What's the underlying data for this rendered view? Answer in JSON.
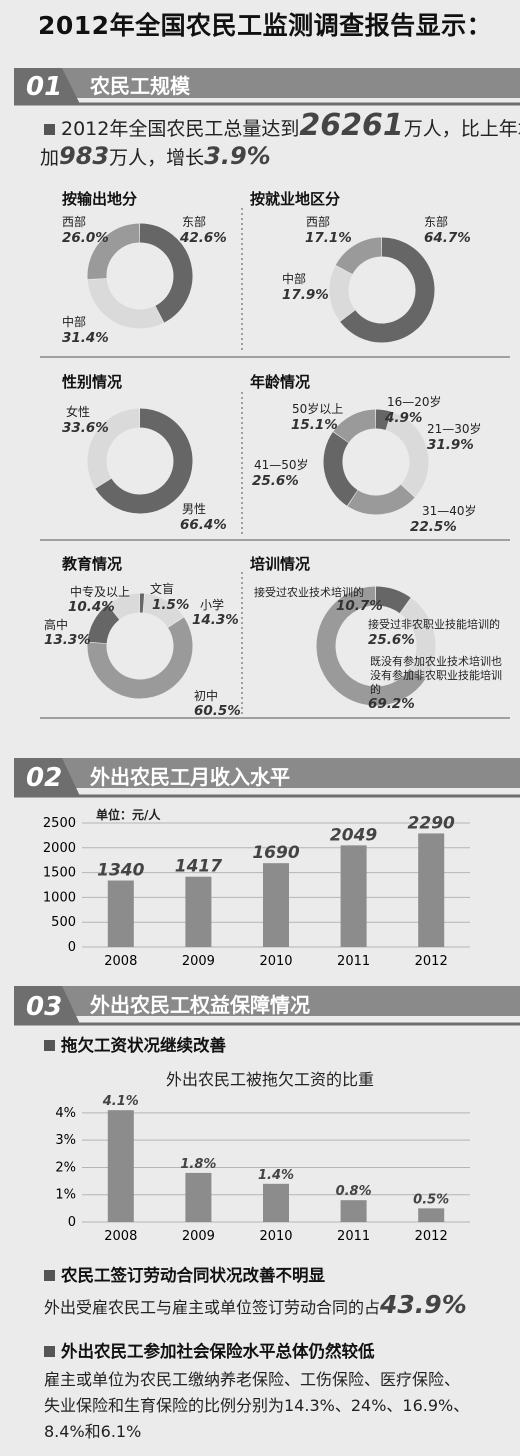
{
  "title": "2012年全国农民工监测调查报告显示：",
  "sections": [
    {
      "num": "01",
      "title": "农民工规模"
    },
    {
      "num": "02",
      "title": "外出农民工月收入水平"
    },
    {
      "num": "03",
      "title": "外出农民工权益保障情况"
    }
  ],
  "scale": {
    "line1_prefix": "2012年全国农民工总量达到",
    "line1_num": "26261",
    "line1_suffix": "万人，比上年增",
    "line2_prefix": "加",
    "line2_num": "983",
    "line2_mid": "万人，增长",
    "line2_pct": "3.9%"
  },
  "colors": {
    "dark": "#666666",
    "mid": "#9a9a9a",
    "light": "#dadada"
  },
  "chart_data": [
    {
      "type": "pie",
      "title": "按输出地分",
      "slices": [
        {
          "label": "东部",
          "value": 42.6,
          "pct": "42.6%",
          "color": "#666666"
        },
        {
          "label": "中部",
          "value": 31.4,
          "pct": "31.4%",
          "color": "#dadada"
        },
        {
          "label": "西部",
          "value": 26.0,
          "pct": "26.0%",
          "color": "#9a9a9a"
        }
      ]
    },
    {
      "type": "pie",
      "title": "按就业地区分",
      "slices": [
        {
          "label": "东部",
          "value": 64.7,
          "pct": "64.7%",
          "color": "#666666"
        },
        {
          "label": "中部",
          "value": 17.9,
          "pct": "17.9%",
          "color": "#dadada"
        },
        {
          "label": "西部",
          "value": 17.1,
          "pct": "17.1%",
          "color": "#9a9a9a"
        }
      ]
    },
    {
      "type": "pie",
      "title": "性别情况",
      "slices": [
        {
          "label": "男性",
          "value": 66.4,
          "pct": "66.4%",
          "color": "#666666"
        },
        {
          "label": "女性",
          "value": 33.6,
          "pct": "33.6%",
          "color": "#dadada"
        }
      ]
    },
    {
      "type": "pie",
      "title": "年龄情况",
      "slices": [
        {
          "label": "16—20岁",
          "value": 4.9,
          "pct": "4.9%",
          "color": "#666666"
        },
        {
          "label": "21—30岁",
          "value": 31.9,
          "pct": "31.9%",
          "color": "#dadada"
        },
        {
          "label": "31—40岁",
          "value": 22.5,
          "pct": "22.5%",
          "color": "#9a9a9a"
        },
        {
          "label": "41—50岁",
          "value": 25.6,
          "pct": "25.6%",
          "color": "#666666"
        },
        {
          "label": "50岁以上",
          "value": 15.1,
          "pct": "15.1%",
          "color": "#9a9a9a"
        }
      ]
    },
    {
      "type": "pie",
      "title": "教育情况",
      "slices": [
        {
          "label": "文盲",
          "value": 1.5,
          "pct": "1.5%",
          "color": "#666666"
        },
        {
          "label": "小学",
          "value": 14.3,
          "pct": "14.3%",
          "color": "#dadada"
        },
        {
          "label": "初中",
          "value": 60.5,
          "pct": "60.5%",
          "color": "#9a9a9a"
        },
        {
          "label": "高中",
          "value": 13.3,
          "pct": "13.3%",
          "color": "#666666"
        },
        {
          "label": "中专及以上",
          "value": 10.4,
          "pct": "10.4%",
          "color": "#dadada"
        }
      ]
    },
    {
      "type": "pie",
      "title": "培训情况",
      "slices": [
        {
          "label": "接受过农业技术培训的",
          "value": 10.7,
          "pct": "10.7%",
          "color": "#666666"
        },
        {
          "label": "接受过非农职业技能培训的",
          "value": 25.6,
          "pct": "25.6%",
          "color": "#dadada"
        },
        {
          "label": "既没有参加农业技术培训也没有参加非农职业技能培训的",
          "value": 69.2,
          "pct": "69.2%",
          "color": "#9a9a9a"
        }
      ]
    },
    {
      "type": "bar",
      "title": "",
      "unit": "单位：元/人",
      "categories": [
        "2008",
        "2009",
        "2010",
        "2011",
        "2012"
      ],
      "values": [
        1340,
        1417,
        1690,
        2049,
        2290
      ],
      "ylim": [
        0,
        2500
      ],
      "yticks": [
        0,
        500,
        1000,
        1500,
        2000,
        2500
      ],
      "grid": true
    },
    {
      "type": "bar",
      "title": "外出农民工被拖欠工资的比重",
      "categories": [
        "2008",
        "2009",
        "2010",
        "2011",
        "2012"
      ],
      "values": [
        4.1,
        1.8,
        1.4,
        0.8,
        0.5
      ],
      "value_labels": [
        "4.1%",
        "1.8%",
        "1.4%",
        "0.8%",
        "0.5%"
      ],
      "ylim": [
        0,
        4.4
      ],
      "yticks": [
        0,
        1,
        2,
        3,
        4
      ],
      "ytick_labels": [
        "0",
        "1%",
        "2%",
        "3%",
        "4%"
      ],
      "grid": true
    }
  ],
  "rights": {
    "head1": "拖欠工资状况继续改善",
    "head2": "农民工签订劳动合同状况改善不明显",
    "contract_text": "外出受雇农民工与雇主或单位签订劳动合同的占",
    "contract_pct": "43.9%",
    "head3": "外出农民工参加社会保险水平总体仍然较低",
    "insurance_line1": "雇主或单位为农民工缴纳养老保险、工伤保险、医疗保险、",
    "insurance_line2": "失业保险和生育保险的比例分别为14.3%、24%、16.9%、",
    "insurance_line3": "8.4%和6.1%"
  }
}
